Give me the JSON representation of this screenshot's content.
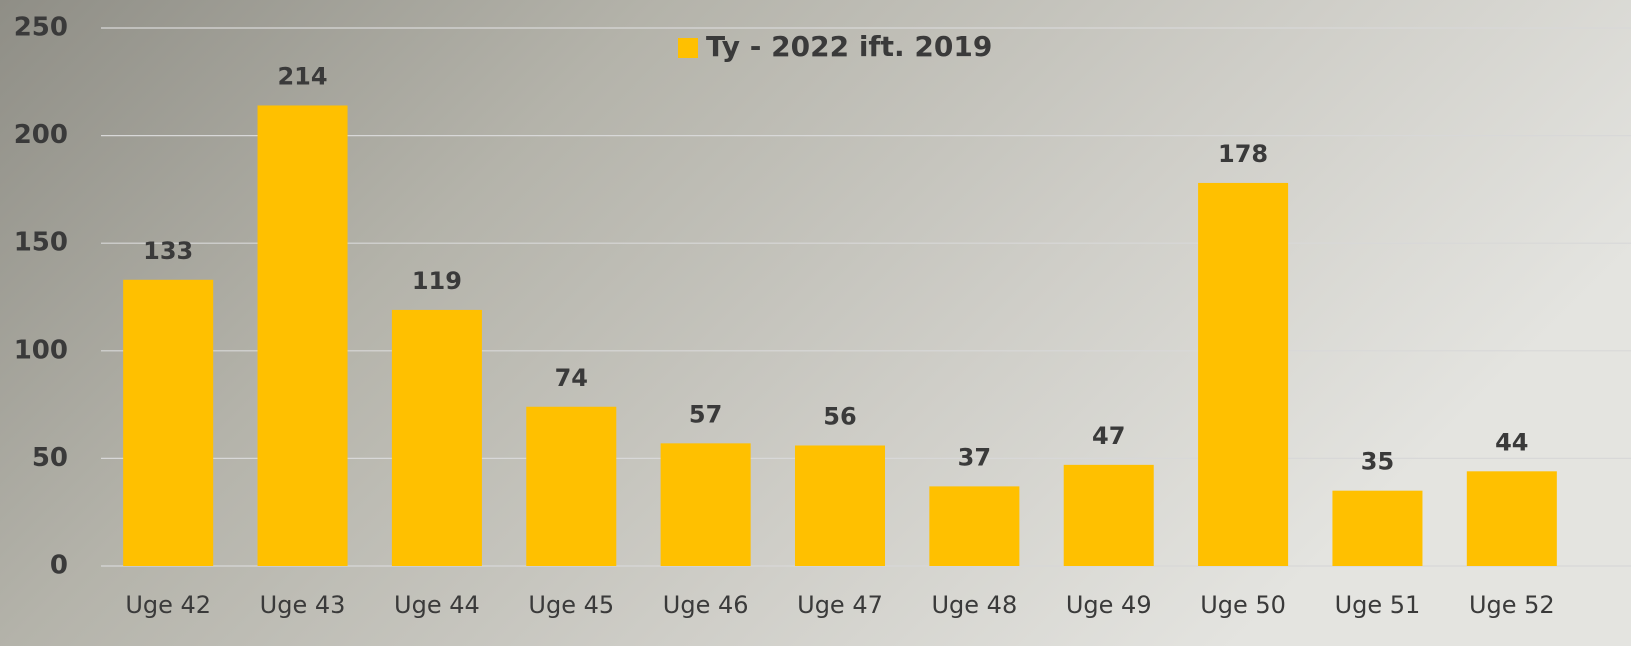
{
  "chart_data": {
    "type": "bar",
    "categories": [
      "Uge 42",
      "Uge 43",
      "Uge 44",
      "Uge 45",
      "Uge 46",
      "Uge 47",
      "Uge 48",
      "Uge 49",
      "Uge 50",
      "Uge 51",
      "Uge 52"
    ],
    "series": [
      {
        "name": "Ty - 2022 ift. 2019",
        "color": "#ffc000",
        "values": [
          133,
          214,
          119,
          74,
          57,
          56,
          37,
          47,
          178,
          35,
          44
        ]
      }
    ],
    "ylim": [
      0,
      250
    ],
    "yticks": [
      0,
      50,
      100,
      150,
      200,
      250
    ],
    "grid": true,
    "legend": "top"
  }
}
